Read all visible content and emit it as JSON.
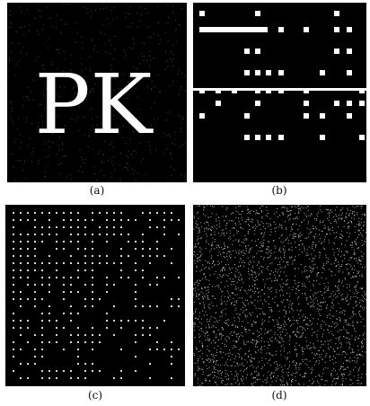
{
  "panels": [
    {
      "label": "(a)",
      "text": "PK"
    },
    {
      "label": "(b)"
    },
    {
      "label": "(c)"
    },
    {
      "label": "(d)"
    }
  ]
}
